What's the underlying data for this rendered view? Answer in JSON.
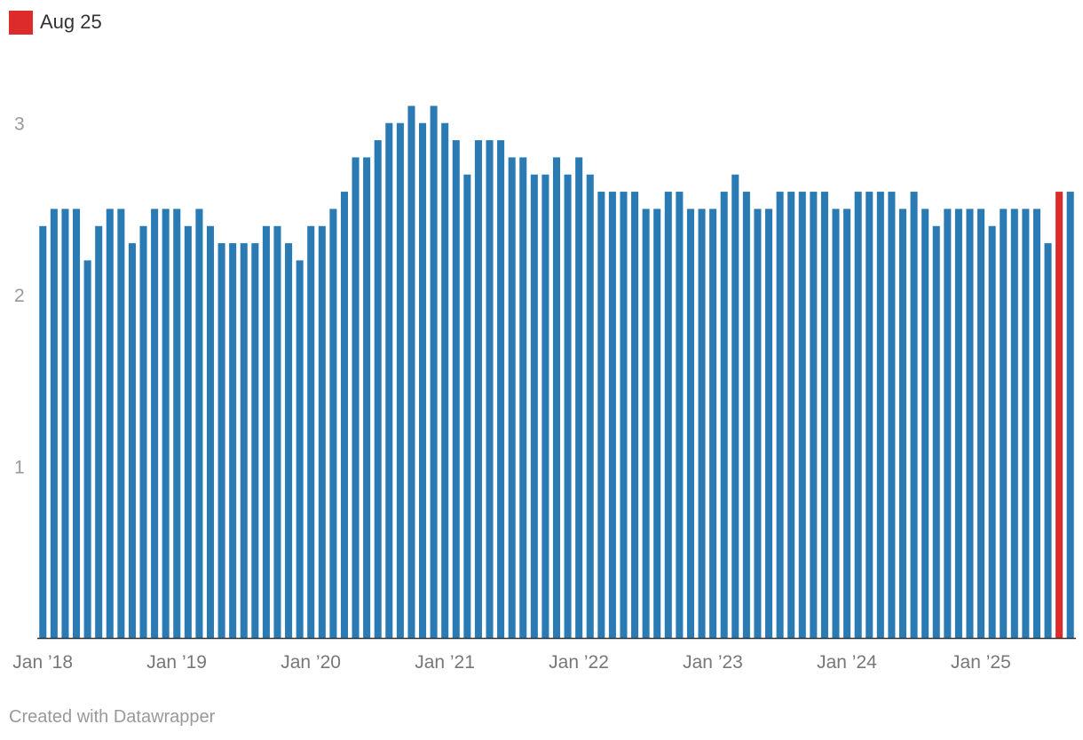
{
  "legend": {
    "label": "Aug 25",
    "color": "#dd2b2b"
  },
  "footer": {
    "credit": "Created with Datawrapper"
  },
  "colors": {
    "bar": "#2a7ab4",
    "highlight": "#dd2b2b",
    "axis": "#333333"
  },
  "chart_data": {
    "type": "bar",
    "ylim": [
      0,
      3.2
    ],
    "y_ticks": [
      1,
      2,
      3
    ],
    "grid": false,
    "legend_position": "top-left",
    "x_tick_labels": [
      "Jan ’18",
      "Jan ’19",
      "Jan ’20",
      "Jan ’21",
      "Jan ’22",
      "Jan ’23",
      "Jan ’24",
      "Jan ’25"
    ],
    "categories": [
      "Jan 18",
      "Feb 18",
      "Mar 18",
      "Apr 18",
      "May 18",
      "Jun 18",
      "Jul 18",
      "Aug 18",
      "Sep 18",
      "Oct 18",
      "Nov 18",
      "Dec 18",
      "Jan 19",
      "Feb 19",
      "Mar 19",
      "Apr 19",
      "May 19",
      "Jun 19",
      "Jul 19",
      "Aug 19",
      "Sep 19",
      "Oct 19",
      "Nov 19",
      "Dec 19",
      "Jan 20",
      "Feb 20",
      "Mar 20",
      "Apr 20",
      "May 20",
      "Jun 20",
      "Jul 20",
      "Aug 20",
      "Sep 20",
      "Oct 20",
      "Nov 20",
      "Dec 20",
      "Jan 21",
      "Feb 21",
      "Mar 21",
      "Apr 21",
      "May 21",
      "Jun 21",
      "Jul 21",
      "Aug 21",
      "Sep 21",
      "Oct 21",
      "Nov 21",
      "Dec 21",
      "Jan 22",
      "Feb 22",
      "Mar 22",
      "Apr 22",
      "May 22",
      "Jun 22",
      "Jul 22",
      "Aug 22",
      "Sep 22",
      "Oct 22",
      "Nov 22",
      "Dec 22",
      "Jan 23",
      "Feb 23",
      "Mar 23",
      "Apr 23",
      "May 23",
      "Jun 23",
      "Jul 23",
      "Aug 23",
      "Sep 23",
      "Oct 23",
      "Nov 23",
      "Dec 23",
      "Jan 24",
      "Feb 24",
      "Mar 24",
      "Apr 24",
      "May 24",
      "Jun 24",
      "Jul 24",
      "Aug 24",
      "Sep 24",
      "Oct 24",
      "Nov 24",
      "Dec 24",
      "Jan 25",
      "Feb 25",
      "Mar 25",
      "Apr 25",
      "May 25",
      "Jun 25",
      "Jul 25",
      "Aug 25",
      "Sep 25"
    ],
    "values": [
      2.4,
      2.5,
      2.5,
      2.5,
      2.2,
      2.4,
      2.5,
      2.5,
      2.3,
      2.4,
      2.5,
      2.5,
      2.5,
      2.4,
      2.5,
      2.4,
      2.3,
      2.3,
      2.3,
      2.3,
      2.4,
      2.4,
      2.3,
      2.2,
      2.4,
      2.4,
      2.5,
      2.6,
      2.8,
      2.8,
      2.9,
      3.0,
      3.0,
      3.1,
      3.0,
      3.1,
      3.0,
      2.9,
      2.7,
      2.9,
      2.9,
      2.9,
      2.8,
      2.8,
      2.7,
      2.7,
      2.8,
      2.7,
      2.8,
      2.7,
      2.6,
      2.6,
      2.6,
      2.6,
      2.5,
      2.5,
      2.6,
      2.6,
      2.5,
      2.5,
      2.5,
      2.6,
      2.7,
      2.6,
      2.5,
      2.5,
      2.6,
      2.6,
      2.6,
      2.6,
      2.6,
      2.5,
      2.5,
      2.6,
      2.6,
      2.6,
      2.6,
      2.5,
      2.6,
      2.5,
      2.4,
      2.5,
      2.5,
      2.5,
      2.5,
      2.4,
      2.5,
      2.5,
      2.5,
      2.5,
      2.3,
      2.6,
      2.6
    ],
    "highlight": "Aug 25"
  }
}
